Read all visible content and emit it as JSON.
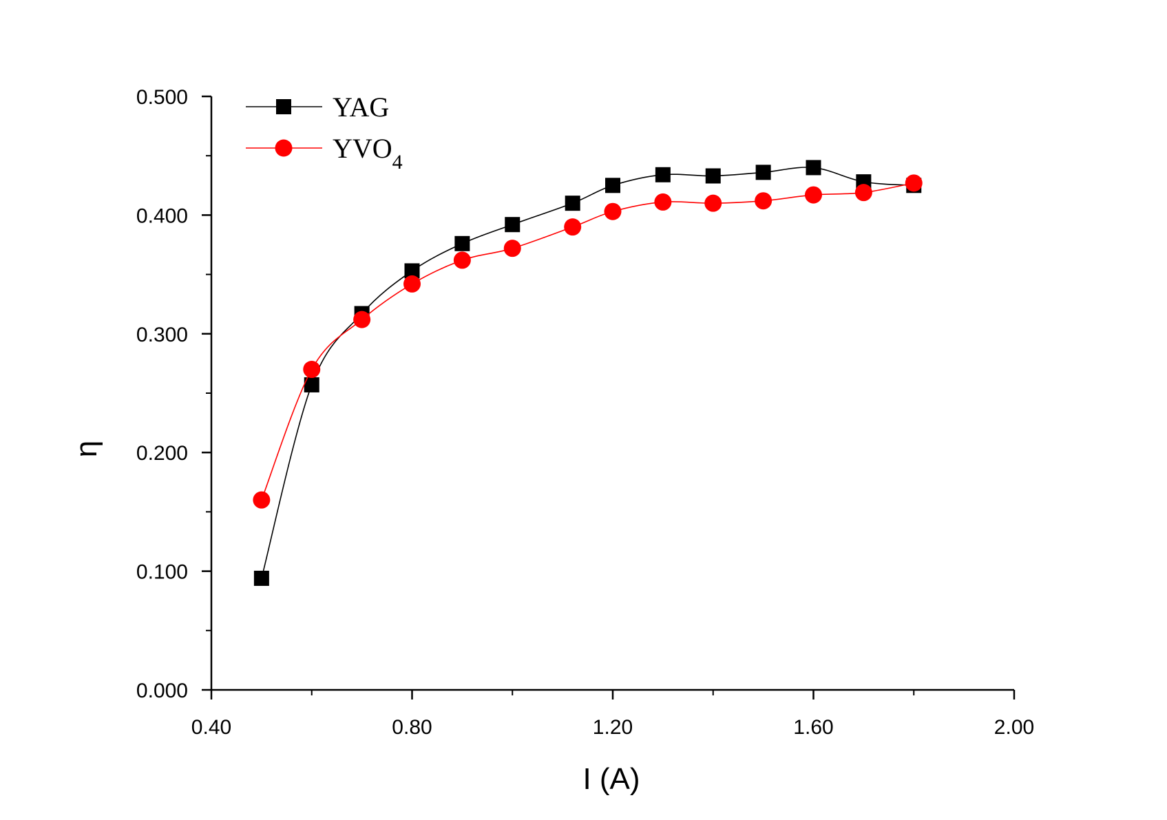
{
  "chart_data": {
    "type": "line",
    "xlabel": "I (A)",
    "ylabel": "η",
    "xlim": [
      0.4,
      2.0
    ],
    "ylim": [
      0.0,
      0.5
    ],
    "x_ticks": [
      "0.40",
      "0.80",
      "1.20",
      "1.60",
      "2.00"
    ],
    "x_tick_values": [
      0.4,
      0.8,
      1.2,
      1.6,
      2.0
    ],
    "x_minor_values": [
      0.6,
      1.0,
      1.4,
      1.8
    ],
    "y_ticks": [
      "0.000",
      "0.100",
      "0.200",
      "0.300",
      "0.400",
      "0.500"
    ],
    "y_tick_values": [
      0.0,
      0.1,
      0.2,
      0.3,
      0.4,
      0.5
    ],
    "y_minor_values": [
      0.05,
      0.15,
      0.25,
      0.35,
      0.45
    ],
    "grid": false,
    "legend_position": "top-left",
    "series": [
      {
        "name": "YAG",
        "legend_text": "YAG",
        "legend_sub": "",
        "color": "#000000",
        "marker": "square",
        "x": [
          0.5,
          0.6,
          0.7,
          0.8,
          0.9,
          1.0,
          1.12,
          1.2,
          1.3,
          1.4,
          1.5,
          1.6,
          1.7,
          1.8
        ],
        "y": [
          0.094,
          0.257,
          0.317,
          0.353,
          0.376,
          0.392,
          0.41,
          0.425,
          0.434,
          0.433,
          0.436,
          0.44,
          0.428,
          0.425
        ]
      },
      {
        "name": "YVO4",
        "legend_text": "YVO",
        "legend_sub": "4",
        "color": "#ff0000",
        "marker": "circle",
        "x": [
          0.5,
          0.6,
          0.7,
          0.8,
          0.9,
          1.0,
          1.12,
          1.2,
          1.3,
          1.4,
          1.5,
          1.6,
          1.7,
          1.8
        ],
        "y": [
          0.16,
          0.27,
          0.312,
          0.342,
          0.362,
          0.372,
          0.39,
          0.403,
          0.411,
          0.41,
          0.412,
          0.417,
          0.419,
          0.427
        ]
      }
    ]
  }
}
